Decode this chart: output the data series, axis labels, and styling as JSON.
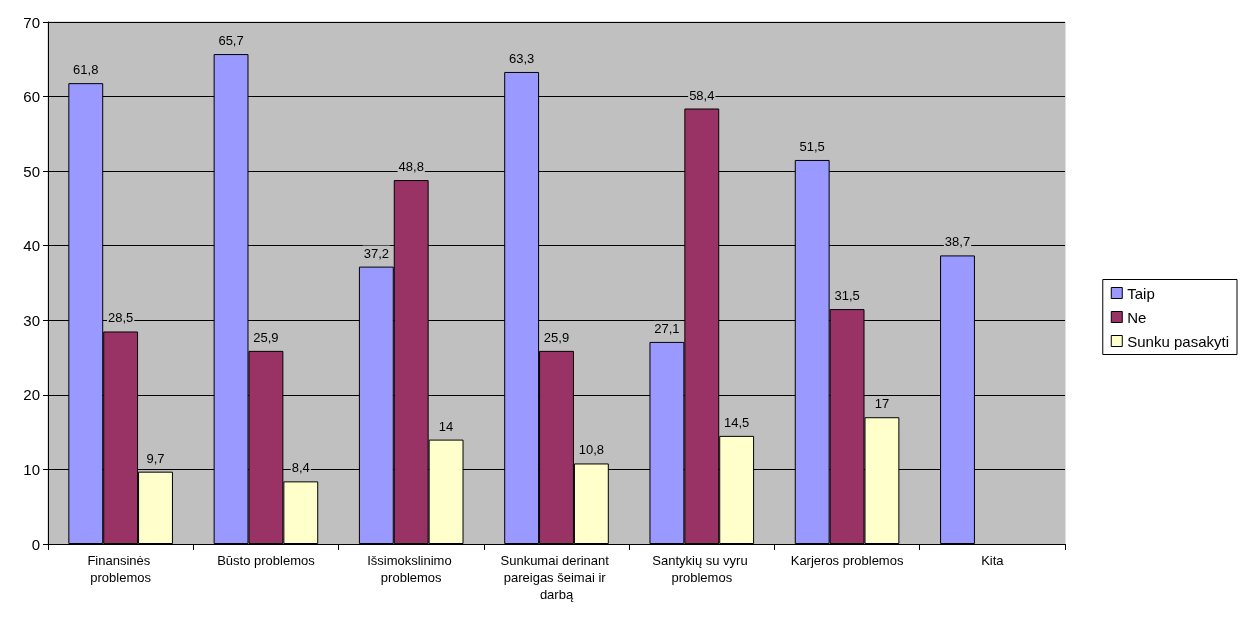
{
  "chart_data": {
    "type": "bar",
    "categories": [
      "Finansinės problemos",
      "Būsto problemos",
      "Išsimokslinimo problemos",
      "Sunkumai derinant pareigas šeimai ir darbą",
      "Santykių su vyru problemos",
      "Karjeros problemos",
      "Kita"
    ],
    "series": [
      {
        "name": "Taip",
        "color": "#9999ff",
        "values": [
          61.8,
          65.7,
          37.2,
          63.3,
          27.1,
          51.5,
          38.7
        ],
        "value_labels": [
          "61,8",
          "65,7",
          "37,2",
          "63,3",
          "27,1",
          "51,5",
          "38,7"
        ]
      },
      {
        "name": "Ne",
        "color": "#993366",
        "values": [
          28.5,
          25.9,
          48.8,
          25.9,
          58.4,
          31.5,
          null
        ],
        "value_labels": [
          "28,5",
          "25,9",
          "48,8",
          "25,9",
          "58,4",
          "31,5",
          null
        ]
      },
      {
        "name": "Sunku pasakyti",
        "color": "#ffffcc",
        "values": [
          9.7,
          8.4,
          14,
          10.8,
          14.5,
          17,
          null
        ],
        "value_labels": [
          "9,7",
          "8,4",
          "14",
          "10,8",
          "14,5",
          "17",
          null
        ]
      }
    ],
    "ylim": [
      0,
      70
    ],
    "yticks": [
      0,
      10,
      20,
      30,
      40,
      50,
      60,
      70
    ],
    "grid": "y",
    "legend": "right"
  }
}
